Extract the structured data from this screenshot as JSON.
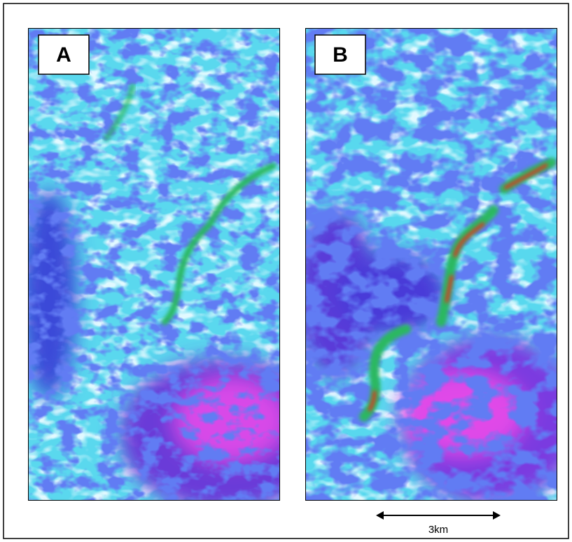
{
  "panels": [
    {
      "label": "A"
    },
    {
      "label": "B"
    }
  ],
  "scale_bar": {
    "label": "3km"
  }
}
